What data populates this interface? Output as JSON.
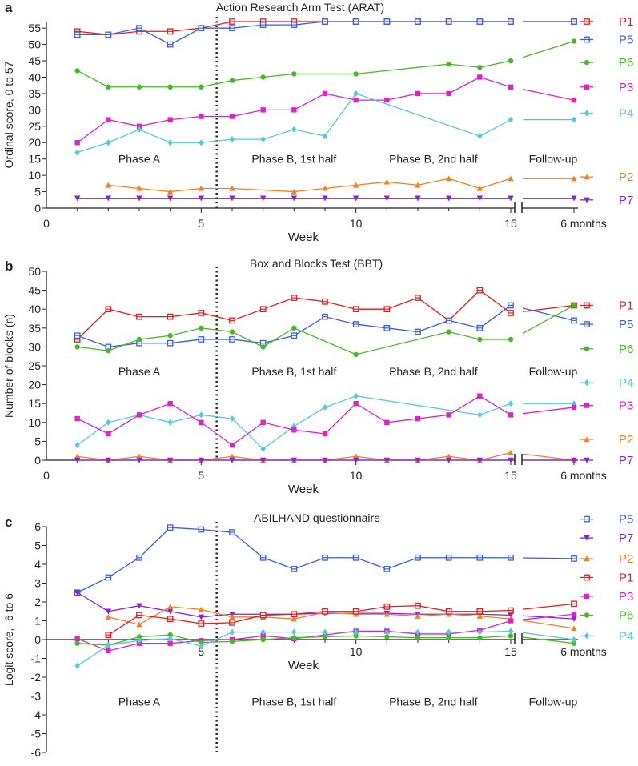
{
  "chart_data": [
    {
      "panel_label": "a",
      "type": "line",
      "title": "Action  Research  Arm  Test (ARAT)",
      "xlabel": "Week",
      "ylabel": "Ordinal score, 0 to 57",
      "xlim": [
        0,
        16.2
      ],
      "ylim": [
        0,
        57
      ],
      "xticks": [
        0,
        5,
        10,
        15
      ],
      "followup_label": "6 months",
      "yticks": [
        0,
        5,
        10,
        15,
        20,
        25,
        30,
        35,
        40,
        45,
        50,
        55
      ],
      "phase_labels": [
        {
          "text": "Phase A",
          "x": 3
        },
        {
          "text": "Phase B, 1st half",
          "x": 8
        },
        {
          "text": "Phase B, 2nd half",
          "x": 12.5
        },
        {
          "text": "Follow-up",
          "x": 17.9
        }
      ],
      "phase_label_y": 15,
      "legend": [
        {
          "name": "P1",
          "y": 57
        },
        {
          "name": "P5",
          "y": 51.5
        },
        {
          "name": "P6",
          "y": 44.5
        },
        {
          "name": "P3",
          "y": 37
        },
        {
          "name": "P4",
          "y": 29
        },
        {
          "name": "P2",
          "y": 9.5
        },
        {
          "name": "P7",
          "y": 2.5
        }
      ],
      "series": [
        {
          "name": "P1",
          "color": "#e41a1c",
          "marker": "sq-open",
          "x": [
            1,
            2,
            3,
            4,
            5,
            6,
            7,
            8,
            9,
            10,
            11,
            12,
            13,
            14,
            15
          ],
          "values": [
            54,
            53,
            54,
            54,
            55,
            57,
            57,
            57,
            57,
            57,
            57,
            57,
            57,
            57,
            57
          ],
          "followup": 57
        },
        {
          "name": "P5",
          "color": "#3a5fdc",
          "marker": "sq-open",
          "x": [
            1,
            2,
            3,
            4,
            5,
            6,
            7,
            8,
            9,
            10,
            11,
            12,
            13,
            14,
            15
          ],
          "values": [
            53,
            53,
            55,
            50,
            55,
            55,
            56,
            56,
            57,
            57,
            57,
            57,
            57,
            57,
            57
          ],
          "followup": 57
        },
        {
          "name": "P6",
          "color": "#44bb22",
          "marker": "circle",
          "x": [
            1,
            2,
            3,
            4,
            5,
            6,
            7,
            8,
            10,
            13,
            14,
            15
          ],
          "values": [
            42,
            37,
            37,
            37,
            37,
            39,
            40,
            41,
            41,
            44,
            43,
            45
          ],
          "followup": 51
        },
        {
          "name": "P3",
          "color": "#dd22cc",
          "marker": "square",
          "x": [
            1,
            2,
            3,
            4,
            5,
            6,
            7,
            8,
            9,
            10,
            11,
            12,
            13,
            14,
            15
          ],
          "values": [
            20,
            27,
            25,
            27,
            28,
            28,
            30,
            30,
            35,
            33,
            33,
            35,
            35,
            40,
            37
          ],
          "followup": 33
        },
        {
          "name": "P4",
          "color": "#55c8dd",
          "marker": "diamond",
          "x": [
            1,
            2,
            3,
            4,
            5,
            6,
            7,
            8,
            9,
            10,
            14,
            15
          ],
          "values": [
            17,
            20,
            24,
            20,
            20,
            21,
            21,
            24,
            22,
            35,
            22,
            27
          ],
          "followup": 27
        },
        {
          "name": "P2",
          "color": "#f08020",
          "marker": "triangle",
          "x": [
            2,
            3,
            4,
            5,
            6,
            8,
            9,
            10,
            11,
            12,
            13,
            14,
            15
          ],
          "values": [
            7,
            6,
            5,
            6,
            6,
            5,
            6,
            7,
            8,
            7,
            9,
            6,
            9
          ],
          "followup": 9
        },
        {
          "name": "P7",
          "color": "#8822dd",
          "marker": "tri-down",
          "x": [
            1,
            2,
            3,
            4,
            5,
            6,
            7,
            8,
            9,
            10,
            11,
            12,
            13,
            14,
            15
          ],
          "values": [
            3,
            3,
            3,
            3,
            3,
            3,
            3,
            3,
            3,
            3,
            3,
            3,
            3,
            3,
            3
          ],
          "followup": 3
        }
      ]
    },
    {
      "panel_label": "b",
      "type": "line",
      "title": "Box and Blocks Test (BBT)",
      "xlabel": "Week",
      "ylabel": "Number of blocks (n)",
      "xlim": [
        0,
        16.2
      ],
      "ylim": [
        0,
        50
      ],
      "xticks": [
        0,
        5,
        10,
        15
      ],
      "followup_label": "6 months",
      "yticks": [
        0,
        5,
        10,
        15,
        20,
        25,
        30,
        35,
        40,
        45,
        50
      ],
      "phase_labels": [
        {
          "text": "Phase A",
          "x": 3
        },
        {
          "text": "Phase B, 1st half",
          "x": 8
        },
        {
          "text": "Phase B, 2nd half",
          "x": 12.5
        },
        {
          "text": "Follow-up",
          "x": 17.9
        }
      ],
      "phase_label_y": 23.5,
      "legend": [
        {
          "name": "P1",
          "y": 41
        },
        {
          "name": "P5",
          "y": 36
        },
        {
          "name": "P6",
          "y": 29.5
        },
        {
          "name": "P4",
          "y": 20.5
        },
        {
          "name": "P3",
          "y": 14.5
        },
        {
          "name": "P2",
          "y": 5.5
        },
        {
          "name": "P7",
          "y": 0
        }
      ],
      "series": [
        {
          "name": "P1",
          "color": "#e41a1c",
          "marker": "sq-open",
          "x": [
            1,
            2,
            3,
            4,
            5,
            6,
            7,
            8,
            9,
            10,
            11,
            12,
            13,
            14,
            15
          ],
          "values": [
            32,
            40,
            38,
            38,
            39,
            37,
            40,
            43,
            42,
            40,
            40,
            43,
            37,
            45,
            39
          ],
          "followup": 41
        },
        {
          "name": "P5",
          "color": "#3a5fdc",
          "marker": "sq-open",
          "x": [
            1,
            2,
            3,
            4,
            5,
            6,
            7,
            8,
            9,
            10,
            11,
            12,
            13,
            14,
            15
          ],
          "values": [
            33,
            30,
            31,
            31,
            32,
            32,
            31,
            33,
            38,
            36,
            35,
            34,
            37,
            35,
            41
          ],
          "followup": 37
        },
        {
          "name": "P6",
          "color": "#44bb22",
          "marker": "circle",
          "x": [
            1,
            2,
            3,
            4,
            5,
            6,
            7,
            8,
            10,
            13,
            14,
            15
          ],
          "values": [
            30,
            29,
            32,
            33,
            35,
            34,
            30,
            35,
            28,
            34,
            32,
            32
          ],
          "followup": 41
        },
        {
          "name": "P4",
          "color": "#55c8dd",
          "marker": "diamond",
          "x": [
            1,
            2,
            3,
            4,
            5,
            6,
            7,
            8,
            9,
            10,
            14,
            15
          ],
          "values": [
            4,
            10,
            12,
            10,
            12,
            11,
            3,
            9,
            14,
            17,
            12,
            15
          ],
          "followup": 15
        },
        {
          "name": "P3",
          "color": "#dd22cc",
          "marker": "square",
          "x": [
            1,
            2,
            3,
            4,
            5,
            6,
            7,
            8,
            9,
            10,
            11,
            12,
            13,
            14,
            15
          ],
          "values": [
            11,
            7,
            12,
            15,
            10,
            4,
            10,
            8,
            7,
            15,
            10,
            11,
            12,
            17,
            12
          ],
          "followup": 14
        },
        {
          "name": "P2",
          "color": "#f08020",
          "marker": "triangle",
          "x": [
            1,
            2,
            3,
            4,
            5,
            6,
            7,
            8,
            9,
            10,
            11,
            12,
            13,
            14,
            15
          ],
          "values": [
            1,
            0,
            1,
            0,
            0,
            1,
            0,
            0,
            0,
            1,
            0,
            0,
            1,
            0,
            2
          ],
          "followup": 0
        },
        {
          "name": "P7",
          "color": "#8822dd",
          "marker": "tri-down",
          "x": [
            1,
            2,
            3,
            4,
            5,
            6,
            7,
            8,
            9,
            10,
            11,
            12,
            13,
            14,
            15
          ],
          "values": [
            0,
            0,
            0,
            0,
            0,
            0,
            0,
            0,
            0,
            0,
            0,
            0,
            0,
            0,
            0
          ],
          "followup": 0
        }
      ]
    },
    {
      "panel_label": "c",
      "type": "line",
      "title": "ABILHAND questionnaire",
      "xlabel": "Week",
      "ylabel": "Logit score, -6 to 6",
      "xlim": [
        0,
        16.2
      ],
      "ylim": [
        -6,
        6
      ],
      "xticks": [
        5,
        10,
        15
      ],
      "followup_label": "6 months",
      "yticks": [
        -6,
        -5,
        -4,
        -3,
        -2,
        -1,
        0,
        1,
        2,
        3,
        4,
        5,
        6
      ],
      "phase_labels": [
        {
          "text": "Phase A",
          "x": 3
        },
        {
          "text": "Phase B, 1st half",
          "x": 8
        },
        {
          "text": "Phase B, 2nd half",
          "x": 12.5
        },
        {
          "text": "Follow-up",
          "x": 17.9
        }
      ],
      "phase_label_y": -3.3,
      "legend": [
        {
          "name": "P5",
          "y": 6.4
        },
        {
          "name": "P7",
          "y": 5.4
        },
        {
          "name": "P2",
          "y": 4.3
        },
        {
          "name": "P1",
          "y": 3.3
        },
        {
          "name": "P3",
          "y": 2.3
        },
        {
          "name": "P6",
          "y": 1.3
        },
        {
          "name": "P4",
          "y": 0.2
        }
      ],
      "series": [
        {
          "name": "P5",
          "color": "#3a5fdc",
          "marker": "sq-open",
          "x": [
            1,
            2,
            3,
            4,
            5,
            6,
            7,
            8,
            9,
            10,
            11,
            12,
            13,
            14,
            15
          ],
          "values": [
            2.5,
            3.3,
            4.35,
            5.95,
            5.85,
            5.7,
            4.35,
            3.75,
            4.35,
            4.35,
            3.75,
            4.35,
            4.35,
            4.35,
            4.35
          ],
          "followup": 4.3
        },
        {
          "name": "P7",
          "color": "#8822dd",
          "marker": "tri-down",
          "x": [
            1,
            2,
            3,
            4,
            5,
            6,
            7,
            8,
            9,
            10,
            11,
            12,
            13,
            14,
            15
          ],
          "values": [
            2.5,
            1.5,
            1.8,
            1.5,
            1.2,
            1.35,
            1.35,
            1.35,
            1.4,
            1.4,
            1.4,
            1.35,
            1.35,
            1.35,
            1.3
          ],
          "followup": 1.1
        },
        {
          "name": "P2",
          "color": "#f08020",
          "marker": "triangle",
          "x": [
            2,
            3,
            4,
            5,
            6,
            7,
            8,
            9,
            10,
            11,
            12,
            13,
            14,
            15
          ],
          "values": [
            1.2,
            0.8,
            1.75,
            1.6,
            1.2,
            1.2,
            1.1,
            1.45,
            1.35,
            1.35,
            1.25,
            1.35,
            1.25,
            1.1
          ],
          "followup": 0.6
        },
        {
          "name": "P1",
          "color": "#e41a1c",
          "marker": "sq-open",
          "x": [
            2,
            3,
            4,
            5,
            6,
            7,
            8,
            9,
            10,
            11,
            12,
            13,
            14,
            15
          ],
          "values": [
            0.25,
            1.3,
            1.1,
            0.85,
            0.9,
            1.3,
            1.35,
            1.5,
            1.5,
            1.75,
            1.8,
            1.5,
            1.5,
            1.55
          ],
          "followup": 1.9
        },
        {
          "name": "P3",
          "color": "#dd22cc",
          "marker": "square",
          "x": [
            1,
            2,
            3,
            4,
            5,
            6,
            7,
            8,
            9,
            10,
            11,
            12,
            13,
            14,
            15
          ],
          "values": [
            0.05,
            -0.6,
            -0.2,
            -0.2,
            -0.05,
            0.0,
            0.2,
            0.05,
            0.25,
            0.45,
            0.45,
            0.3,
            0.3,
            0.5,
            1.0
          ],
          "followup": 1.35
        },
        {
          "name": "P6",
          "color": "#44bb22",
          "marker": "circle",
          "x": [
            1,
            2,
            3,
            4,
            5,
            6,
            7,
            8,
            9,
            10,
            11,
            12,
            13,
            14,
            15
          ],
          "values": [
            -0.2,
            -0.3,
            0.15,
            0.25,
            -0.15,
            -0.1,
            0.0,
            0.1,
            0.15,
            0.2,
            0.15,
            0.1,
            0.1,
            0.1,
            0.2
          ],
          "followup": -0.2
        },
        {
          "name": "P4",
          "color": "#55c8dd",
          "marker": "diamond",
          "x": [
            1,
            2,
            3,
            4,
            5,
            6,
            7,
            8,
            9,
            10,
            11,
            12,
            13,
            14,
            15
          ],
          "values": [
            -1.4,
            -0.3,
            -0.05,
            0.05,
            -0.35,
            0.4,
            0.4,
            0.4,
            0.4,
            0.4,
            0.4,
            0.4,
            0.4,
            0.4,
            0.45
          ],
          "followup": 0.0
        }
      ]
    }
  ]
}
